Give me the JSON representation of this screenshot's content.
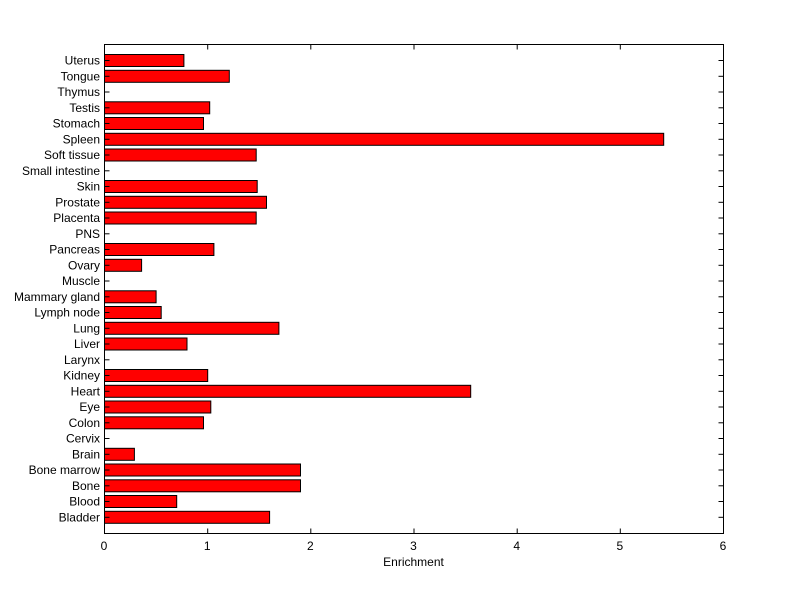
{
  "chart_data": {
    "type": "bar",
    "orientation": "horizontal",
    "categories": [
      "Uterus",
      "Tongue",
      "Thymus",
      "Testis",
      "Stomach",
      "Spleen",
      "Soft tissue",
      "Small intestine",
      "Skin",
      "Prostate",
      "Placenta",
      "PNS",
      "Pancreas",
      "Ovary",
      "Muscle",
      "Mammary gland",
      "Lymph node",
      "Lung",
      "Liver",
      "Larynx",
      "Kidney",
      "Heart",
      "Eye",
      "Colon",
      "Cervix",
      "Brain",
      "Bone marrow",
      "Bone",
      "Blood",
      "Bladder"
    ],
    "values": [
      0.77,
      1.21,
      0,
      1.02,
      0.96,
      5.42,
      1.47,
      0,
      1.48,
      1.57,
      1.47,
      0,
      1.06,
      0.36,
      0,
      0.5,
      0.55,
      1.69,
      0.8,
      0,
      1.0,
      3.55,
      1.03,
      0.96,
      0,
      0.29,
      1.9,
      1.9,
      0.7,
      1.6
    ],
    "xlabel": "Enrichment",
    "ylabel": "",
    "title": "",
    "xlim": [
      0,
      6
    ],
    "xticks": [
      "0",
      "1",
      "2",
      "3",
      "4",
      "5",
      "6"
    ],
    "grid": false,
    "colors": {
      "bar_fill": "#ff0000",
      "bar_edge": "#000000",
      "axes": "#000000"
    }
  }
}
